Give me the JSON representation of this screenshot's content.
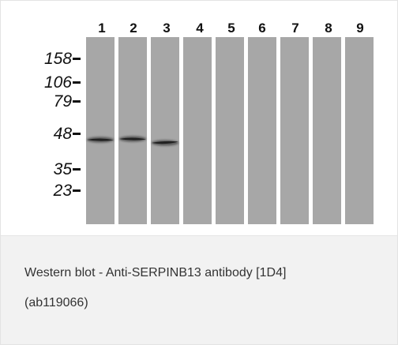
{
  "blot": {
    "lane_labels": [
      "1",
      "2",
      "3",
      "4",
      "5",
      "6",
      "7",
      "8",
      "9"
    ],
    "markers": [
      "158",
      "106",
      "79",
      "48",
      "35",
      "23"
    ],
    "marker_values_kda": [
      158,
      106,
      79,
      48,
      35,
      23
    ],
    "lane_color": "#a7a7a7",
    "band_color": "#1b1b1b",
    "bands": [
      {
        "lane": "1",
        "approx_kda": 44
      },
      {
        "lane": "2",
        "approx_kda": 44
      },
      {
        "lane": "3",
        "approx_kda": 42
      }
    ]
  },
  "caption": {
    "line1": "Western blot - Anti-SERPINB13 antibody [1D4]",
    "line2": "(ab119066)"
  }
}
